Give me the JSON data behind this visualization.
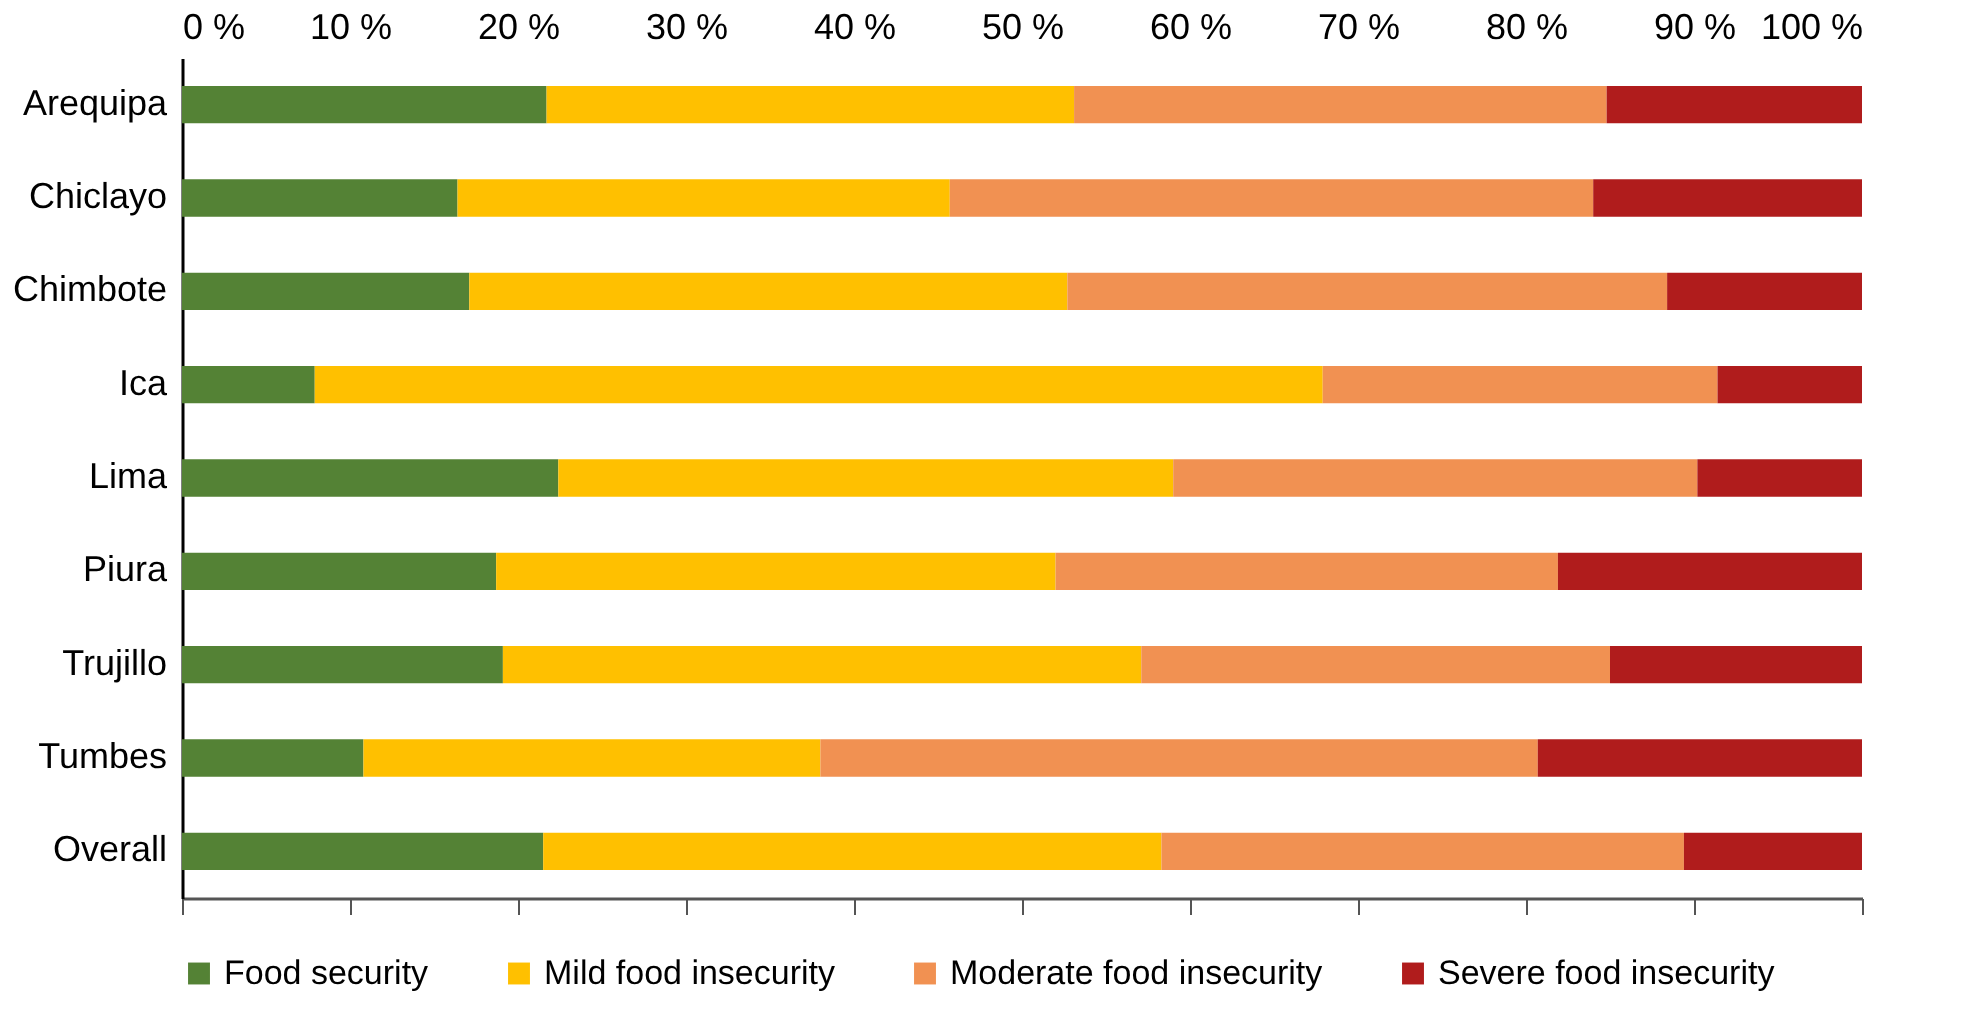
{
  "chart_data": {
    "type": "bar",
    "orientation": "horizontal",
    "stacked": true,
    "categories": [
      "Arequipa",
      "Chiclayo",
      "Chimbote",
      "Ica",
      "Lima",
      "Piura",
      "Trujillo",
      "Tumbes",
      "Overall"
    ],
    "series": [
      {
        "name": "Food security",
        "color": "#548235",
        "values": [
          21.7,
          16.4,
          17.1,
          7.9,
          22.4,
          18.7,
          19.1,
          10.8,
          21.5
        ]
      },
      {
        "name": "Mild food insecurity",
        "color": "#ffc000",
        "values": [
          31.4,
          29.3,
          35.6,
          60.0,
          36.6,
          33.3,
          38.0,
          27.2,
          36.8
        ]
      },
      {
        "name": "Moderate food insecurity",
        "color": "#f19152",
        "values": [
          31.7,
          38.3,
          35.7,
          23.5,
          31.2,
          29.9,
          27.9,
          42.7,
          31.1
        ]
      },
      {
        "name": "Severe food insecurity",
        "color": "#b01c1c",
        "values": [
          15.2,
          16.0,
          11.6,
          8.6,
          9.8,
          18.1,
          15.0,
          19.3,
          10.6
        ]
      }
    ],
    "xlim": [
      0,
      100
    ],
    "xticks": [
      {
        "value": 0,
        "label": "0 %"
      },
      {
        "value": 10,
        "label": "10 %"
      },
      {
        "value": 20,
        "label": "20 %"
      },
      {
        "value": 30,
        "label": "30 %"
      },
      {
        "value": 40,
        "label": "40 %"
      },
      {
        "value": 50,
        "label": "50 %"
      },
      {
        "value": 60,
        "label": "60 %"
      },
      {
        "value": 70,
        "label": "70 %"
      },
      {
        "value": 80,
        "label": "80 %"
      },
      {
        "value": 90,
        "label": "90 %"
      },
      {
        "value": 100,
        "label": "100 %"
      }
    ],
    "grid": false,
    "legend": "bottom"
  }
}
